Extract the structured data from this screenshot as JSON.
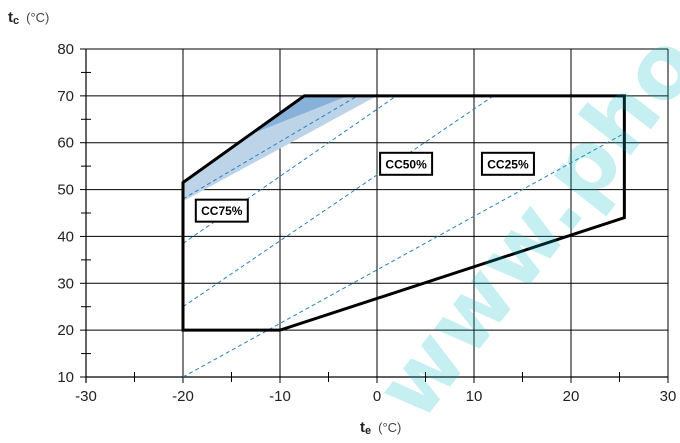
{
  "chart_data": {
    "type": "line",
    "title": "",
    "xlabel": {
      "main": "t",
      "sub": "e",
      "unit": "(°C)"
    },
    "ylabel": {
      "main": "t",
      "sub": "c",
      "unit": "(°C)"
    },
    "xlim": [
      -30,
      30
    ],
    "ylim": [
      10,
      80
    ],
    "x_ticks": [
      -30,
      -20,
      -10,
      0,
      10,
      20,
      30
    ],
    "y_ticks": [
      10,
      20,
      30,
      40,
      50,
      60,
      70,
      80
    ],
    "grid": true,
    "envelope": [
      [
        -20,
        20
      ],
      [
        -10,
        20
      ],
      [
        25.5,
        44
      ],
      [
        25.5,
        70
      ],
      [
        -7.5,
        70
      ],
      [
        -20,
        51.5
      ]
    ],
    "shaded_region": [
      [
        -20,
        51.5
      ],
      [
        -7.5,
        70
      ],
      [
        0,
        70
      ],
      [
        -20,
        47.5
      ]
    ],
    "shaded_inner": [
      [
        -13,
        62
      ],
      [
        -7.5,
        70
      ],
      [
        -3,
        70
      ],
      [
        -14,
        61
      ]
    ],
    "dashed_lines": [
      {
        "from": [
          -20,
          48
        ],
        "to": [
          -2,
          70
        ]
      },
      {
        "from": [
          -20,
          38.5
        ],
        "to": [
          2,
          70
        ]
      },
      {
        "from": [
          -20,
          25
        ],
        "to": [
          12,
          70
        ]
      },
      {
        "from": [
          -20,
          10
        ],
        "to": [
          25.5,
          62
        ]
      }
    ],
    "annotations": [
      {
        "text": "CC75%",
        "x": -16,
        "y": 45.5
      },
      {
        "text": "CC50%",
        "x": 3,
        "y": 55.5
      },
      {
        "text": "CC25%",
        "x": 13.5,
        "y": 55.5
      }
    ],
    "colors": {
      "envelope": "#000000",
      "dashed": "#2b7fc0",
      "shade_light": "#bcd3e8",
      "shade_dark": "#7eaad6"
    }
  },
  "watermark": "www.pho"
}
